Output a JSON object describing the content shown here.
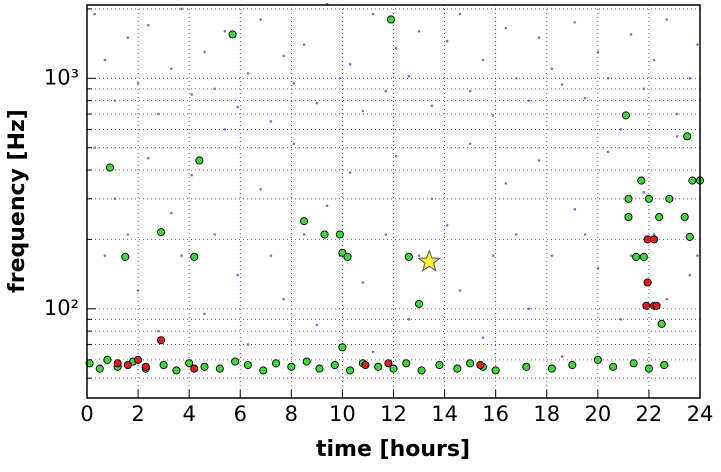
{
  "chart_data": {
    "type": "scatter",
    "xlabel": "time [hours]",
    "ylabel": "frequency [Hz]",
    "xlim": [
      0,
      24
    ],
    "xticks": [
      0,
      2,
      4,
      6,
      8,
      10,
      12,
      14,
      16,
      18,
      20,
      22,
      24
    ],
    "ylim": [
      41,
      2080
    ],
    "yscale": "log",
    "yticks": [
      {
        "value": 100,
        "label": "10²"
      },
      {
        "value": 1000,
        "label": "10³"
      }
    ],
    "yminorticks": [
      50,
      60,
      70,
      80,
      90,
      200,
      300,
      400,
      500,
      600,
      700,
      800,
      900,
      2000
    ],
    "grid": true,
    "series": [
      {
        "color": "#7b6fe0",
        "marker": "dot",
        "x": [
          0.3,
          0.7,
          1.1,
          1.6,
          2,
          2.4,
          2.8,
          3.3,
          3.7,
          4.1,
          4.6,
          5,
          5.4,
          5.9,
          6.3,
          6.8,
          7.2,
          7.7,
          8.1,
          8.5,
          9,
          9.4,
          9.9,
          10.3,
          10.8,
          11.2,
          11.7,
          12.1,
          12.6,
          13,
          13.5,
          14.1,
          14.6,
          15,
          15.5,
          15.9,
          16.4,
          16.8,
          17.3,
          17.7,
          18.2,
          18.6,
          19.1,
          19.5,
          20,
          20.4,
          20.9,
          21.3,
          21.8,
          22.2,
          22.7,
          23.1,
          23.6,
          23.9
        ],
        "values": [
          1900,
          1200,
          800,
          1500,
          950,
          1700,
          700,
          1100,
          2000,
          850,
          1300,
          900,
          1600,
          750,
          1050,
          1800,
          650,
          1250,
          950,
          1400,
          780,
          2100,
          1000,
          1150,
          720,
          1900,
          880,
          1350,
          1020,
          1600,
          760,
          1450,
          1900,
          880,
          1200,
          690,
          1650,
          1000,
          800,
          1500,
          1100,
          940,
          1750,
          820,
          1300,
          1000,
          600,
          1550,
          900,
          1200,
          1800,
          700,
          1000,
          1400
        ]
      },
      {
        "color": "#7b6fe0",
        "marker": "dot",
        "x": [
          0.3,
          0.7,
          1.1,
          1.6,
          2,
          2.4,
          2.8,
          3.3,
          3.7,
          4.1,
          4.6,
          5,
          5.4,
          5.9,
          6.3,
          6.8,
          7.2,
          7.7,
          8.1,
          8.5,
          9,
          9.4,
          9.9,
          10.3,
          10.8,
          11.2,
          11.7,
          12.1,
          12.6,
          13,
          13.5,
          14.1,
          14.6,
          15,
          15.5,
          15.9,
          16.4,
          16.8,
          17.3,
          17.7,
          18.2,
          18.6,
          19.1,
          19.5,
          20,
          20.4,
          20.9,
          21.3,
          21.8,
          22.2,
          22.7,
          23.1,
          23.6,
          23.9
        ],
        "values": [
          500,
          170,
          300,
          210,
          120,
          450,
          80,
          260,
          170,
          380,
          95,
          210,
          600,
          140,
          70,
          330,
          170,
          110,
          520,
          210,
          85,
          280,
          170,
          390,
          130,
          65,
          210,
          460,
          90,
          170,
          300,
          230,
          120,
          520,
          75,
          170,
          350,
          210,
          100,
          440,
          170,
          62,
          270,
          210,
          150,
          480,
          90,
          170,
          320,
          210,
          110,
          560,
          140,
          170
        ]
      },
      {
        "color": "#3fd63f",
        "marker": "circle",
        "x": [
          0.9,
          1.5,
          2.9,
          4.2,
          4.4,
          5.7,
          8.5,
          9.3,
          9.9,
          10,
          10.2,
          10,
          11.9,
          12.6,
          13,
          21.1,
          21.2,
          21.2,
          21.5,
          21.7,
          21.8,
          22,
          22.4,
          22.5,
          22.8,
          23.4,
          23.5,
          23.6,
          23.7,
          24,
          0.1,
          0.5,
          0.8,
          1.2,
          1.8,
          2.3,
          3,
          3.5,
          4,
          4.6,
          5.2,
          5.8,
          6.3,
          6.9,
          7.4,
          8,
          8.6,
          9.1,
          9.7,
          10.3,
          10.8,
          11.4,
          12,
          12.5,
          13.1,
          13.8,
          14.5,
          15,
          15.5,
          16,
          17.2,
          18.2,
          19,
          20,
          20.6,
          21.4,
          22,
          22.6
        ],
        "values": [
          410,
          168,
          215,
          168,
          440,
          1550,
          240,
          210,
          210,
          175,
          168,
          68,
          1800,
          168,
          105,
          690,
          300,
          250,
          168,
          360,
          168,
          300,
          250,
          86,
          300,
          250,
          560,
          205,
          360,
          360,
          58,
          55,
          60,
          56,
          59,
          55,
          57,
          54,
          58,
          56,
          55,
          59,
          57,
          54,
          58,
          56,
          59,
          55,
          57,
          54,
          58,
          56,
          55,
          58,
          54,
          57,
          55,
          58,
          56,
          54,
          56,
          55,
          57,
          60,
          56,
          58,
          55,
          57
        ]
      },
      {
        "color": "#e02020",
        "marker": "circle",
        "x": [
          2.9,
          1.2,
          1.6,
          2,
          2.3,
          4.2,
          10.9,
          11.8,
          15.4,
          21.95,
          22.2,
          21.95,
          21.9,
          22.2,
          22.3
        ],
        "values": [
          73,
          58,
          57,
          60,
          56,
          55,
          57,
          58,
          57,
          200,
          200,
          130,
          103,
          103,
          103
        ]
      },
      {
        "color": "#ffee33",
        "marker": "star",
        "x": [
          13.4
        ],
        "values": [
          160
        ]
      }
    ]
  }
}
